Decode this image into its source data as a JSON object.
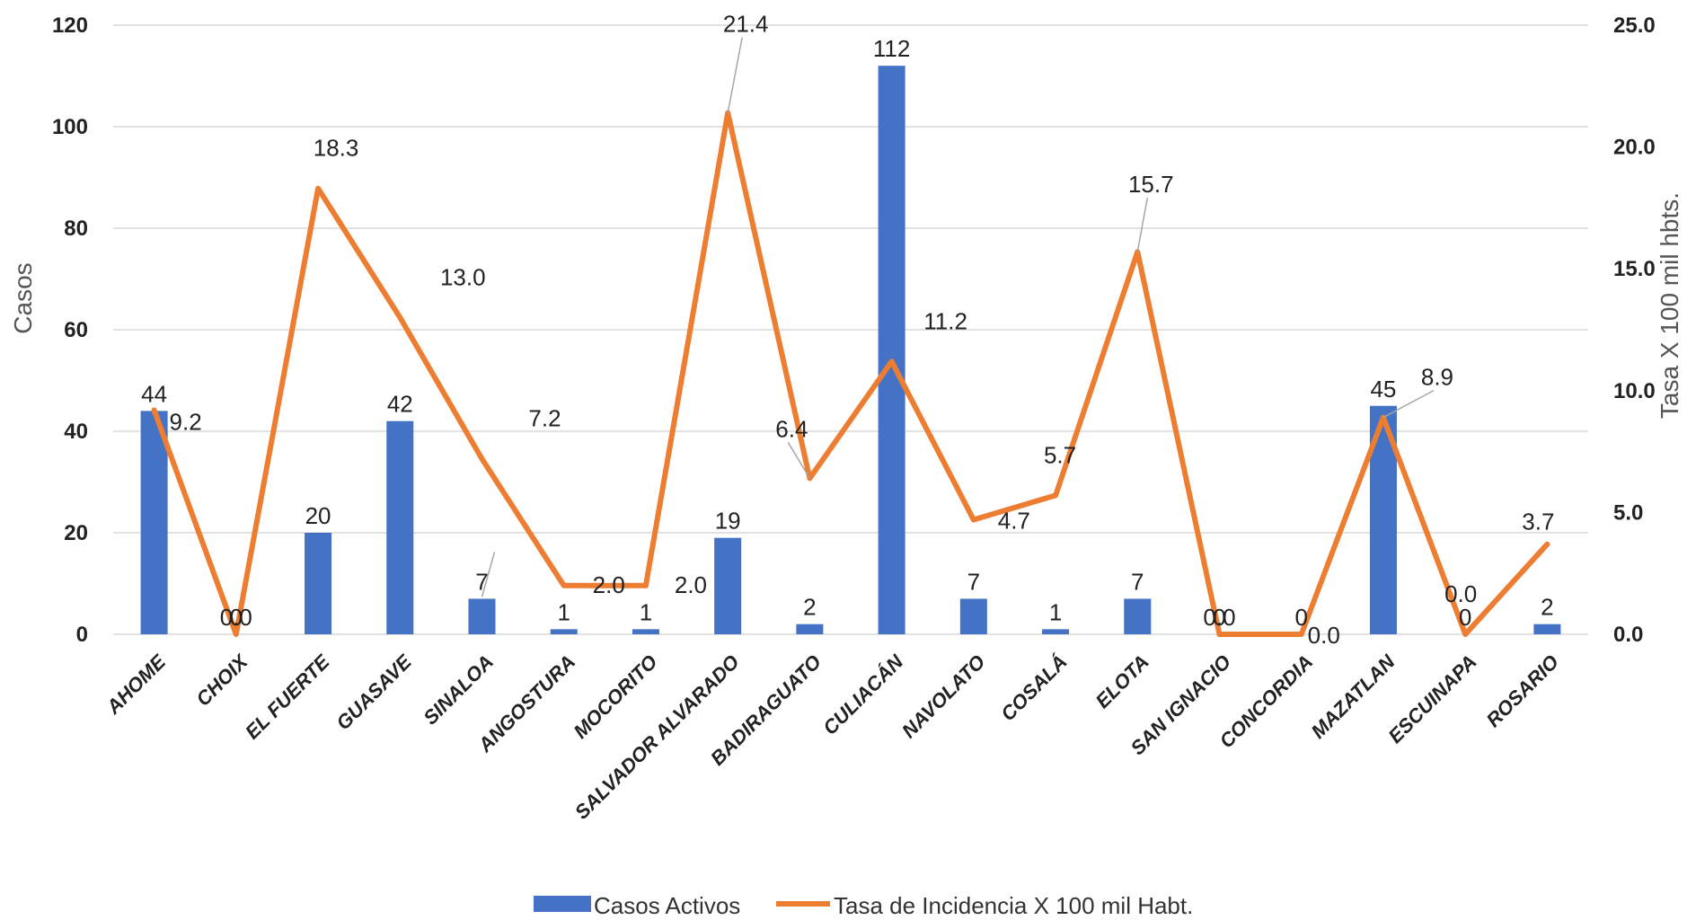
{
  "chart_data": {
    "type": "bar+line",
    "categories": [
      "AHOME",
      "CHOIX",
      "EL FUERTE",
      "GUASAVE",
      "SINALOA",
      "ANGOSTURA",
      "MOCORITO",
      "SALVADOR ALVARADO",
      "BADIRAGUATO",
      "CULIACÁN",
      "NAVOLATO",
      "COSALÁ",
      "ELOTA",
      "SAN IGNACIO",
      "CONCORDIA",
      "MAZATLAN",
      "ESCUINAPA",
      "ROSARIO"
    ],
    "series": [
      {
        "name": "Casos Activos",
        "type": "bar",
        "axis": "left",
        "color": "#4472C4",
        "values": [
          44,
          0,
          20,
          42,
          7,
          1,
          1,
          19,
          2,
          112,
          7,
          1,
          7,
          0,
          0,
          45,
          0,
          2
        ],
        "labels": [
          "44",
          "0",
          "20",
          "42",
          "7",
          "1",
          "1",
          "19",
          "2",
          "112",
          "7",
          "1",
          "7",
          "0",
          "0",
          "45",
          "0",
          "2"
        ]
      },
      {
        "name": "Tasa de Incidencia X 100 mil Habt.",
        "type": "line",
        "axis": "right",
        "color": "#ED7D31",
        "values": [
          9.2,
          0.0,
          18.3,
          13.0,
          7.2,
          2.0,
          2.0,
          21.4,
          6.4,
          11.2,
          4.7,
          5.7,
          15.7,
          0.0,
          0.0,
          8.9,
          0.0,
          3.7
        ],
        "labels": [
          "9.2",
          "0.0",
          "18.3",
          "13.0",
          "7.2",
          "2.0",
          "2.0",
          "21.4",
          "6.4",
          "11.2",
          "4.7",
          "5.7",
          "15.7",
          "0.0",
          "0.0",
          "8.9",
          "0.0",
          "3.7"
        ]
      }
    ],
    "ylabel": "Casos",
    "y2label": "Tasa X 100 mil hbts.",
    "ylim": [
      0,
      120
    ],
    "y2lim": [
      0,
      25
    ],
    "yticks": [
      "0",
      "20",
      "40",
      "60",
      "80",
      "100",
      "120"
    ],
    "y2ticks": [
      "0.0",
      "5.0",
      "10.0",
      "15.0",
      "20.0",
      "25.0"
    ],
    "grid": true,
    "legend_position": "bottom"
  }
}
